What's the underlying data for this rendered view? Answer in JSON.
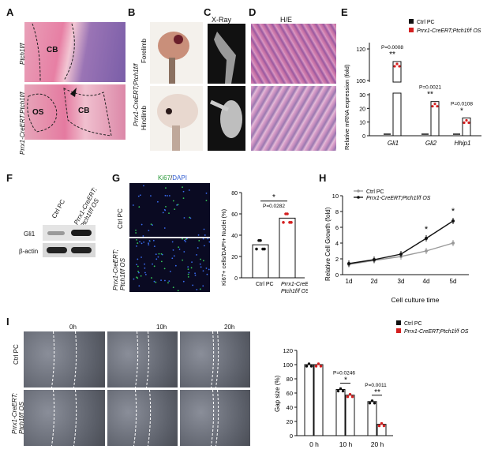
{
  "panels": {
    "A": {
      "letter": "A",
      "row1_label": "Ptch1f/f",
      "row2_label": "Prrx1-CreERT;Ptch1f/f",
      "cb": "CB",
      "os": "OS"
    },
    "B": {
      "letter": "B",
      "side_label": "Prrx1-CreERT;Ptch1f/f",
      "forelimb": "Forelimb",
      "hindlimb": "Hindlimb"
    },
    "C": {
      "letter": "C",
      "title": "X-Ray"
    },
    "D": {
      "letter": "D",
      "title": "H/E"
    },
    "F": {
      "letter": "F",
      "lane1": "Ctrl PC",
      "lane2": "Prrx1-CreERT; Ptch1f/f OS",
      "band1": "Gli1",
      "band2": "β-actin"
    },
    "G": {
      "letter": "G",
      "title_green": "Ki67",
      "title_sep": "/",
      "title_blue": "DAPI",
      "row1": "Ctrl PC",
      "row2": "Prrx1-CreERT; Ptch1f/f OS"
    },
    "I": {
      "letter": "I",
      "t0": "0h",
      "t1": "10h",
      "t2": "20h",
      "row1": "Ctrl PC",
      "row2": "Prrx1-CreERT; Ptch1f/f OS"
    }
  },
  "chart_data": [
    {
      "id": "E",
      "letter": "E",
      "type": "bar",
      "ylabel": "Relative mRNA expression (fold)",
      "categories": [
        "Gli1",
        "Gli2",
        "Hhip1"
      ],
      "legend": [
        "Ctrl PC",
        "Prrx1-CreERT;Ptch1f/f OS"
      ],
      "series": [
        {
          "name": "Ctrl PC",
          "values": [
            1,
            1,
            1
          ],
          "color": "#111111"
        },
        {
          "name": "Prrx1-CreERT;Ptch1f/f OS",
          "values": [
            112,
            25,
            13
          ],
          "color": "#d42020"
        }
      ],
      "ybreak_upper": [
        100,
        120
      ],
      "ybreak_lower": [
        0,
        30
      ],
      "upper_ticks": [
        "100",
        "120"
      ],
      "lower_ticks": [
        "0",
        "10",
        "20",
        "30"
      ],
      "pvalues": [
        "P=0.0008",
        "P=0.0021",
        "P=0.0108"
      ],
      "stars": [
        "**",
        "**",
        "*"
      ]
    },
    {
      "id": "G",
      "type": "bar",
      "ylabel": "Ki67+ cells/DAPI+ Nuclei (%)",
      "categories": [
        "Ctrl PC",
        "Prrx1-CreERT; Ptch1f/f OS"
      ],
      "values": [
        31,
        56
      ],
      "ylim": [
        0,
        80
      ],
      "ticks": [
        "0",
        "20",
        "40",
        "60",
        "80"
      ],
      "pvalue": "P=0.0282",
      "star": "*"
    },
    {
      "id": "H",
      "letter": "H",
      "type": "line",
      "ylabel": "Relative Cell Growth (fold)",
      "xlabel": "Cell culture time",
      "x": [
        "1d",
        "2d",
        "3d",
        "4d",
        "5d"
      ],
      "series": [
        {
          "name": "Ctrl PC",
          "values": [
            1.3,
            1.8,
            2.3,
            3.0,
            4.0
          ],
          "color": "#999999"
        },
        {
          "name": "Prrx1-CreERT;Ptch1f/f OS",
          "values": [
            1.4,
            1.9,
            2.6,
            4.6,
            6.8
          ],
          "color": "#111111"
        }
      ],
      "ylim": [
        0,
        10
      ],
      "ticks": [
        "0",
        "2",
        "4",
        "6",
        "8",
        "10"
      ],
      "stars": [
        "*",
        "*"
      ]
    },
    {
      "id": "I",
      "type": "bar",
      "ylabel": "Gap size (%)",
      "categories": [
        "0 h",
        "10 h",
        "20 h"
      ],
      "legend": [
        "Ctrl PC",
        "Prrx1-CreERT;Ptch1f/f OS"
      ],
      "series": [
        {
          "name": "Ctrl PC",
          "values": [
            100,
            65,
            48
          ],
          "color": "#111111"
        },
        {
          "name": "Prrx1-CreERT;Ptch1f/f OS",
          "values": [
            100,
            57,
            16
          ],
          "color": "#d42020"
        }
      ],
      "ylim": [
        0,
        120
      ],
      "ticks": [
        "0",
        "20",
        "40",
        "60",
        "80",
        "100",
        "120"
      ],
      "pvalues": [
        "P=0.0246",
        "P=0.0011"
      ],
      "stars": [
        "*",
        "**"
      ]
    }
  ]
}
